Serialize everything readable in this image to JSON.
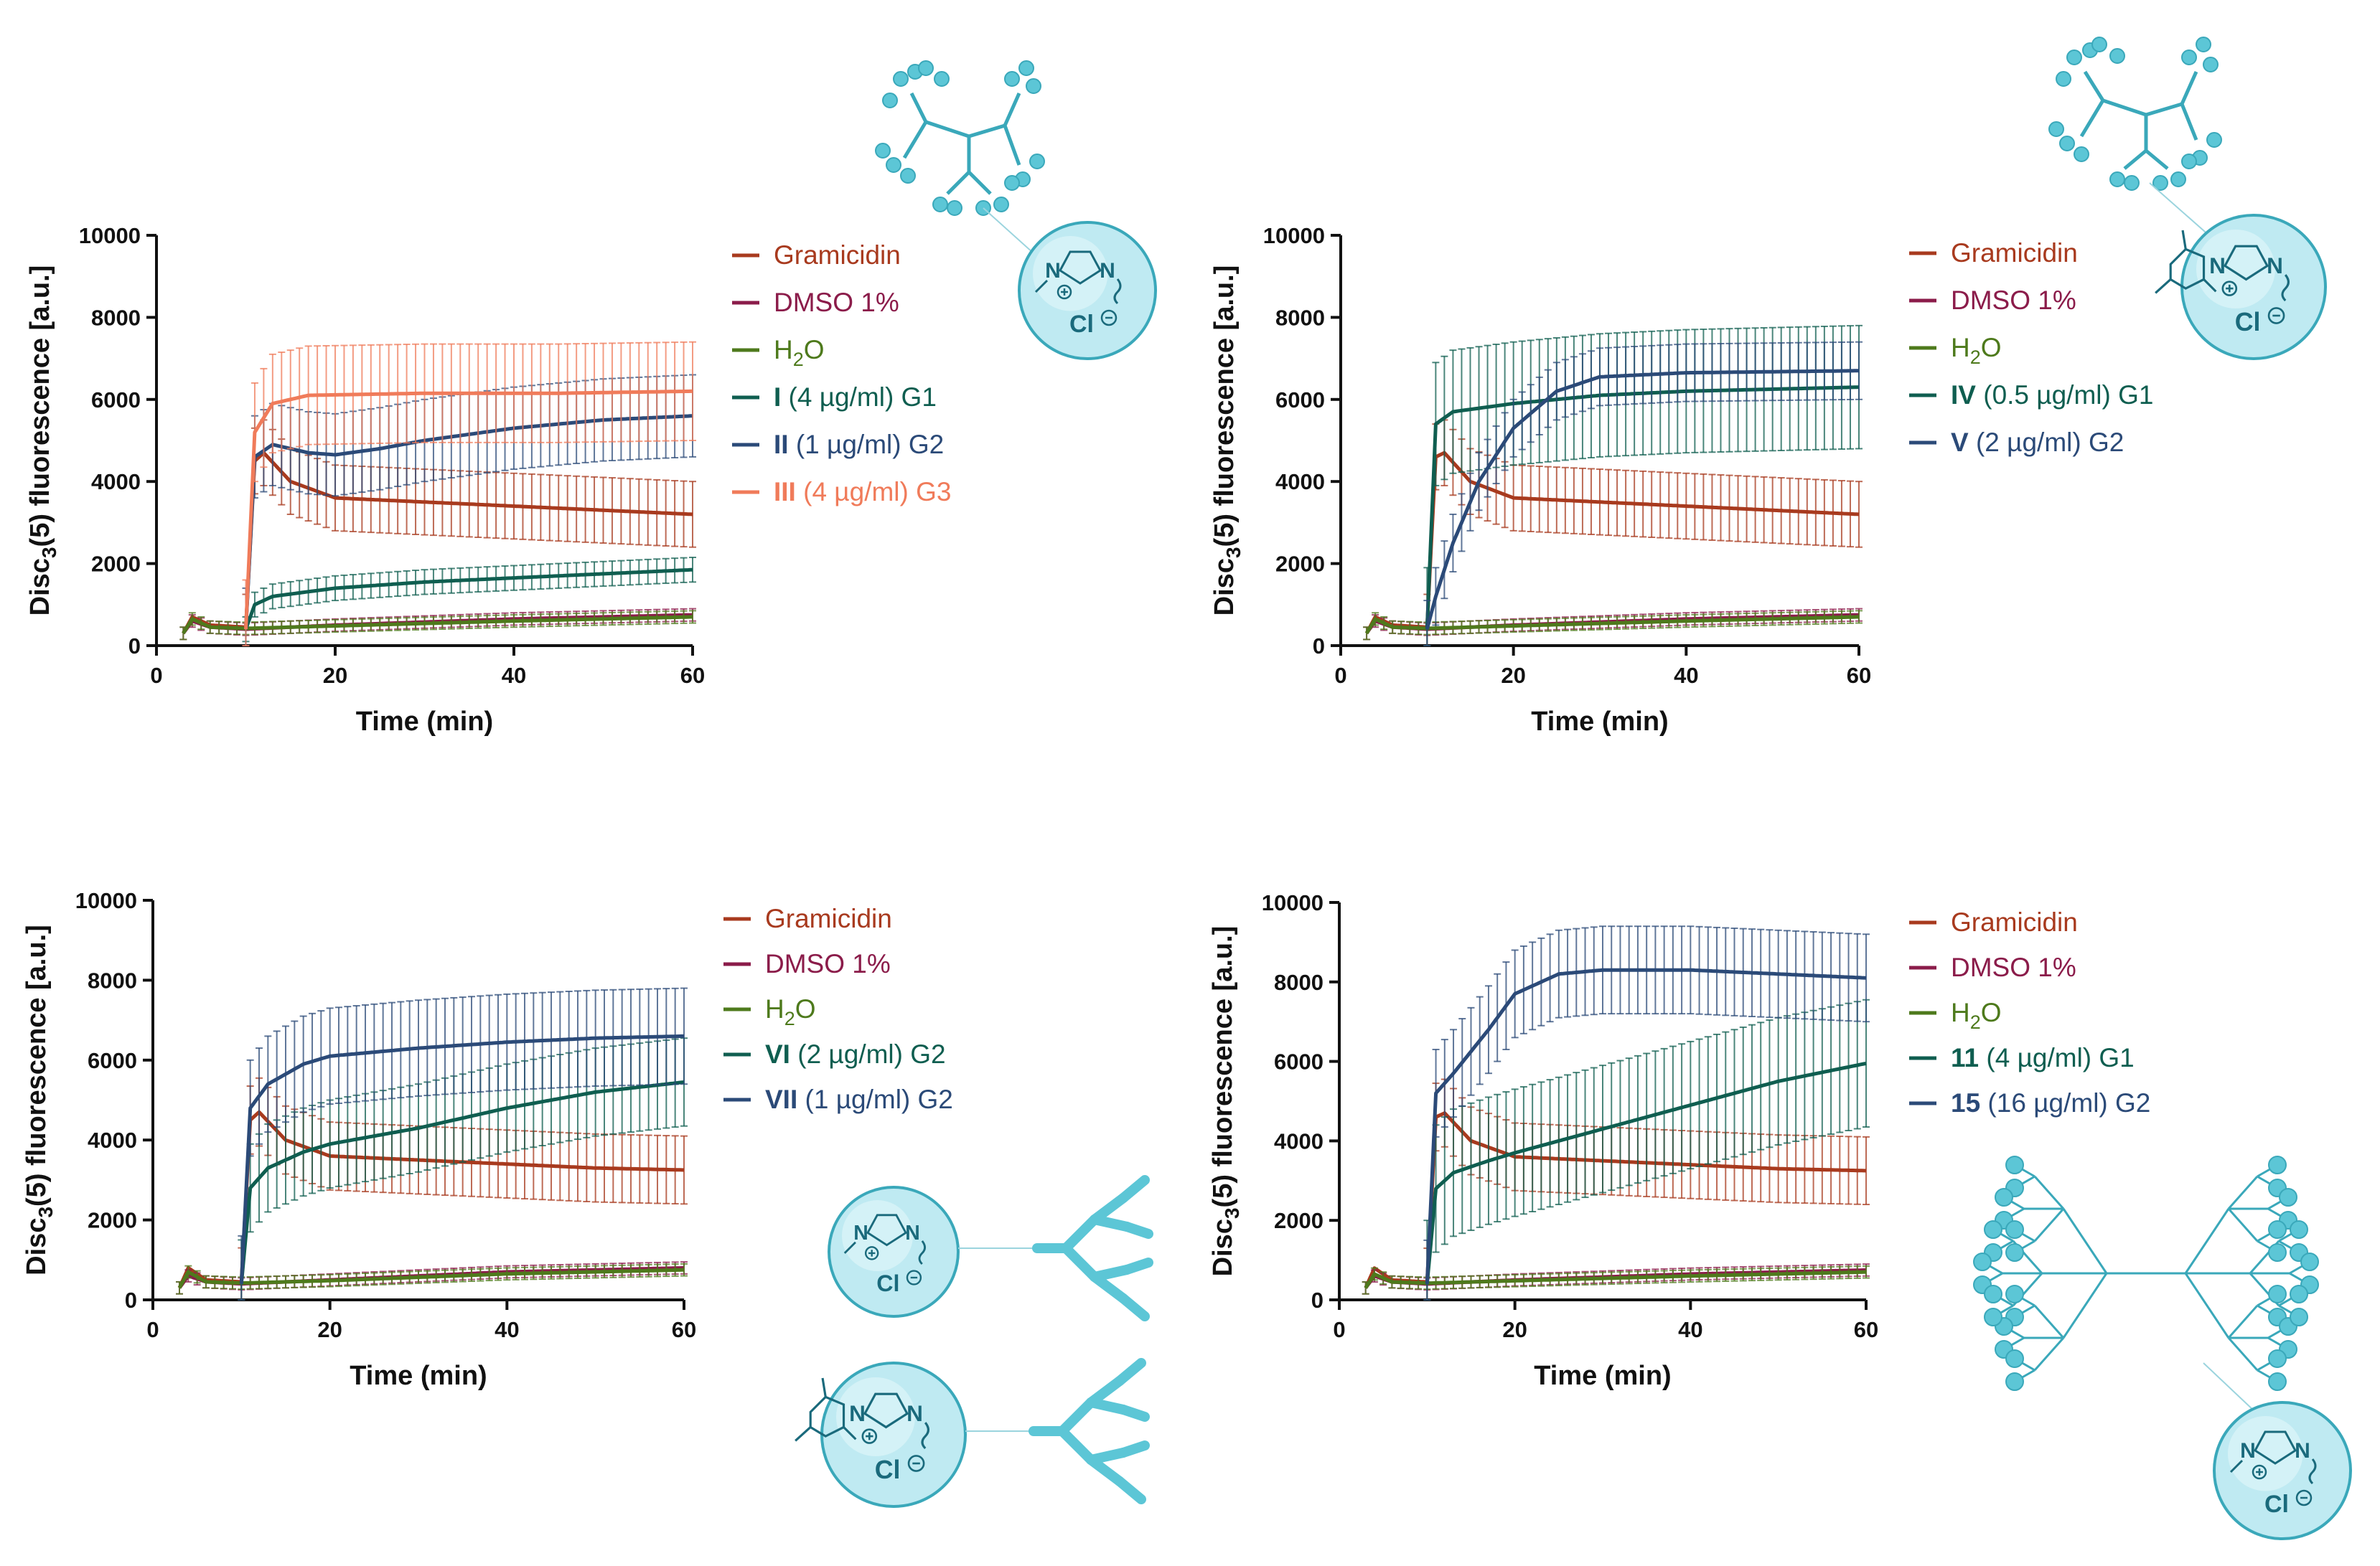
{
  "figure": {
    "colors": {
      "gramicidin": "#a83a1e",
      "dmso": "#8b1c4a",
      "water": "#4e7a1c",
      "teal": "#0f5e50",
      "blue": "#2b4a78",
      "orange": "#f07b5a",
      "mol": "#5cc6d6",
      "molStroke": "#3aa8ba"
    }
  },
  "chart_data": [
    {
      "type": "line",
      "panel": "top-left",
      "xlabel": "Time (min)",
      "ylabel_main": "Disc",
      "ylabel_sub": "3",
      "ylabel_rest": "(5) fluorescence [a.u.]",
      "xlim": [
        0,
        60
      ],
      "ylim": [
        0,
        10000
      ],
      "xticks": [
        "0",
        "20",
        "40",
        "60"
      ],
      "yticks": [
        "0",
        "2000",
        "4000",
        "6000",
        "8000",
        "10000"
      ],
      "legend_position": "right",
      "series": [
        {
          "key": "gram",
          "colorKey": "gramicidin",
          "bold": "",
          "label": "Gramicidin",
          "label_sub": "",
          "label_rest": "",
          "err": 800,
          "points": [
            [
              3,
              300
            ],
            [
              4,
              700
            ],
            [
              6,
              500
            ],
            [
              10,
              450
            ],
            [
              11,
              4500
            ],
            [
              12,
              4700
            ],
            [
              15,
              4000
            ],
            [
              20,
              3600
            ],
            [
              30,
              3500
            ],
            [
              40,
              3400
            ],
            [
              50,
              3300
            ],
            [
              60,
              3200
            ]
          ]
        },
        {
          "key": "dmso",
          "colorKey": "dmso",
          "bold": "",
          "label": "DMSO 1%",
          "label_sub": "",
          "label_rest": "",
          "err": 150,
          "points": [
            [
              3,
              300
            ],
            [
              4,
              600
            ],
            [
              6,
              450
            ],
            [
              10,
              400
            ],
            [
              20,
              500
            ],
            [
              40,
              650
            ],
            [
              60,
              750
            ]
          ]
        },
        {
          "key": "h2o",
          "colorKey": "water",
          "bold": "",
          "label": "H",
          "label_sub": "2",
          "label_rest": "O",
          "err": 150,
          "points": [
            [
              3,
              300
            ],
            [
              4,
              650
            ],
            [
              6,
              450
            ],
            [
              10,
              420
            ],
            [
              20,
              480
            ],
            [
              40,
              600
            ],
            [
              60,
              700
            ]
          ]
        },
        {
          "key": "s1",
          "colorKey": "teal",
          "bold": "I",
          "label": " (4 µg/ml) G1",
          "label_sub": "",
          "label_rest": "",
          "err": 300,
          "points": [
            [
              10,
              400
            ],
            [
              11,
              1000
            ],
            [
              13,
              1200
            ],
            [
              20,
              1400
            ],
            [
              30,
              1550
            ],
            [
              40,
              1650
            ],
            [
              50,
              1750
            ],
            [
              60,
              1850
            ]
          ]
        },
        {
          "key": "s2",
          "colorKey": "blue",
          "bold": "II",
          "label": " (1 µg/ml) G2",
          "label_sub": "",
          "label_rest": "",
          "err": 1000,
          "points": [
            [
              10,
              400
            ],
            [
              11,
              4600
            ],
            [
              13,
              4900
            ],
            [
              17,
              4700
            ],
            [
              20,
              4650
            ],
            [
              25,
              4800
            ],
            [
              30,
              5000
            ],
            [
              40,
              5300
            ],
            [
              50,
              5500
            ],
            [
              60,
              5600
            ]
          ]
        },
        {
          "key": "s3",
          "colorKey": "orange",
          "bold": "III",
          "label": " (4 µg/ml) G3",
          "label_sub": "",
          "label_rest": "",
          "err": 1200,
          "points": [
            [
              10,
              400
            ],
            [
              11,
              5200
            ],
            [
              13,
              5900
            ],
            [
              17,
              6100
            ],
            [
              30,
              6150
            ],
            [
              45,
              6150
            ],
            [
              60,
              6200
            ]
          ]
        }
      ]
    },
    {
      "type": "line",
      "panel": "top-right",
      "xlabel": "Time (min)",
      "ylabel_main": "Disc",
      "ylabel_sub": "3",
      "ylabel_rest": "(5) fluorescence [a.u.]",
      "xlim": [
        0,
        60
      ],
      "ylim": [
        0,
        10000
      ],
      "xticks": [
        "0",
        "20",
        "40",
        "60"
      ],
      "yticks": [
        "0",
        "2000",
        "4000",
        "6000",
        "8000",
        "10000"
      ],
      "legend_position": "right",
      "series": [
        {
          "key": "gram",
          "colorKey": "gramicidin",
          "bold": "",
          "label": "Gramicidin",
          "label_sub": "",
          "label_rest": "",
          "err": 800,
          "points": [
            [
              3,
              300
            ],
            [
              4,
              700
            ],
            [
              6,
              500
            ],
            [
              10,
              450
            ],
            [
              11,
              4600
            ],
            [
              12,
              4700
            ],
            [
              15,
              4000
            ],
            [
              20,
              3600
            ],
            [
              30,
              3500
            ],
            [
              40,
              3400
            ],
            [
              50,
              3300
            ],
            [
              60,
              3200
            ]
          ]
        },
        {
          "key": "dmso",
          "colorKey": "dmso",
          "bold": "",
          "label": "DMSO 1%",
          "label_sub": "",
          "label_rest": "",
          "err": 150,
          "points": [
            [
              3,
              300
            ],
            [
              4,
              600
            ],
            [
              6,
              450
            ],
            [
              10,
              400
            ],
            [
              20,
              500
            ],
            [
              40,
              650
            ],
            [
              60,
              750
            ]
          ]
        },
        {
          "key": "h2o",
          "colorKey": "water",
          "bold": "",
          "label": "H",
          "label_sub": "2",
          "label_rest": "O",
          "err": 150,
          "points": [
            [
              3,
              300
            ],
            [
              4,
              650
            ],
            [
              6,
              450
            ],
            [
              10,
              420
            ],
            [
              20,
              480
            ],
            [
              40,
              600
            ],
            [
              60,
              700
            ]
          ]
        },
        {
          "key": "s1",
          "colorKey": "teal",
          "bold": "IV",
          "label": " (0.5 µg/ml) G1",
          "label_sub": "",
          "label_rest": "",
          "err": 1500,
          "points": [
            [
              10,
              400
            ],
            [
              11,
              5400
            ],
            [
              13,
              5700
            ],
            [
              20,
              5900
            ],
            [
              30,
              6100
            ],
            [
              40,
              6200
            ],
            [
              60,
              6300
            ]
          ]
        },
        {
          "key": "s2",
          "colorKey": "blue",
          "bold": "V",
          "label": " (2 µg/ml) G2",
          "label_sub": "",
          "label_rest": "",
          "err": 700,
          "points": [
            [
              10,
              400
            ],
            [
              11,
              1200
            ],
            [
              13,
              2500
            ],
            [
              16,
              4000
            ],
            [
              20,
              5300
            ],
            [
              25,
              6200
            ],
            [
              30,
              6550
            ],
            [
              40,
              6650
            ],
            [
              60,
              6700
            ]
          ]
        }
      ]
    },
    {
      "type": "line",
      "panel": "bottom-left",
      "xlabel": "Time (min)",
      "ylabel_main": "Disc",
      "ylabel_sub": "3",
      "ylabel_rest": "(5) fluorescence [a.u.]",
      "xlim": [
        0,
        60
      ],
      "ylim": [
        0,
        10000
      ],
      "xticks": [
        "0",
        "20",
        "40",
        "60"
      ],
      "yticks": [
        "0",
        "2000",
        "4000",
        "6000",
        "8000",
        "10000"
      ],
      "legend_position": "right",
      "series": [
        {
          "key": "gram",
          "colorKey": "gramicidin",
          "bold": "",
          "label": "Gramicidin",
          "label_sub": "",
          "label_rest": "",
          "err": 850,
          "points": [
            [
              3,
              300
            ],
            [
              4,
              800
            ],
            [
              6,
              500
            ],
            [
              10,
              450
            ],
            [
              11,
              4500
            ],
            [
              12,
              4700
            ],
            [
              15,
              4000
            ],
            [
              20,
              3600
            ],
            [
              30,
              3500
            ],
            [
              40,
              3400
            ],
            [
              50,
              3300
            ],
            [
              60,
              3250
            ]
          ]
        },
        {
          "key": "dmso",
          "colorKey": "dmso",
          "bold": "",
          "label": "DMSO 1%",
          "label_sub": "",
          "label_rest": "",
          "err": 150,
          "points": [
            [
              3,
              300
            ],
            [
              4,
              600
            ],
            [
              6,
              450
            ],
            [
              10,
              400
            ],
            [
              20,
              500
            ],
            [
              40,
              700
            ],
            [
              60,
              800
            ]
          ]
        },
        {
          "key": "h2o",
          "colorKey": "water",
          "bold": "",
          "label": "H",
          "label_sub": "2",
          "label_rest": "O",
          "err": 150,
          "points": [
            [
              3,
              300
            ],
            [
              4,
              700
            ],
            [
              6,
              450
            ],
            [
              10,
              420
            ],
            [
              20,
              480
            ],
            [
              40,
              650
            ],
            [
              60,
              750
            ]
          ]
        },
        {
          "key": "s1",
          "colorKey": "teal",
          "bold": "VI",
          "label": " (2 µg/ml) G2",
          "label_sub": "",
          "label_rest": "",
          "err": 1100,
          "points": [
            [
              10,
              400
            ],
            [
              11,
              2800
            ],
            [
              13,
              3300
            ],
            [
              17,
              3700
            ],
            [
              20,
              3900
            ],
            [
              30,
              4300
            ],
            [
              40,
              4800
            ],
            [
              50,
              5200
            ],
            [
              60,
              5450
            ]
          ]
        },
        {
          "key": "s2",
          "colorKey": "blue",
          "bold": "VII",
          "label": " (1 µg/ml) G2",
          "label_sub": "",
          "label_rest": "",
          "err": 1200,
          "points": [
            [
              10,
              400
            ],
            [
              11,
              4800
            ],
            [
              13,
              5400
            ],
            [
              17,
              5900
            ],
            [
              20,
              6100
            ],
            [
              30,
              6300
            ],
            [
              40,
              6450
            ],
            [
              50,
              6550
            ],
            [
              60,
              6600
            ]
          ]
        }
      ]
    },
    {
      "type": "line",
      "panel": "bottom-right",
      "xlabel": "Time (min)",
      "ylabel_main": "Disc",
      "ylabel_sub": "3",
      "ylabel_rest": "(5) fluorescence [a.u.]",
      "xlim": [
        0,
        60
      ],
      "ylim": [
        0,
        10000
      ],
      "xticks": [
        "0",
        "20",
        "40",
        "60"
      ],
      "yticks": [
        "0",
        "2000",
        "4000",
        "6000",
        "8000",
        "10000"
      ],
      "legend_position": "right",
      "series": [
        {
          "key": "gram",
          "colorKey": "gramicidin",
          "bold": "",
          "label": "Gramicidin",
          "label_sub": "",
          "label_rest": "",
          "err": 850,
          "points": [
            [
              3,
              300
            ],
            [
              4,
              800
            ],
            [
              6,
              500
            ],
            [
              10,
              450
            ],
            [
              11,
              4600
            ],
            [
              12,
              4700
            ],
            [
              15,
              4000
            ],
            [
              20,
              3600
            ],
            [
              30,
              3500
            ],
            [
              40,
              3400
            ],
            [
              50,
              3300
            ],
            [
              60,
              3250
            ]
          ]
        },
        {
          "key": "dmso",
          "colorKey": "dmso",
          "bold": "",
          "label": "DMSO 1%",
          "label_sub": "",
          "label_rest": "",
          "err": 150,
          "points": [
            [
              3,
              300
            ],
            [
              4,
              600
            ],
            [
              6,
              450
            ],
            [
              10,
              400
            ],
            [
              20,
              500
            ],
            [
              40,
              650
            ],
            [
              60,
              750
            ]
          ]
        },
        {
          "key": "h2o",
          "colorKey": "water",
          "bold": "",
          "label": "H",
          "label_sub": "2",
          "label_rest": "O",
          "err": 150,
          "points": [
            [
              3,
              300
            ],
            [
              4,
              650
            ],
            [
              6,
              450
            ],
            [
              10,
              420
            ],
            [
              20,
              480
            ],
            [
              40,
              600
            ],
            [
              60,
              700
            ]
          ]
        },
        {
          "key": "s1",
          "colorKey": "teal",
          "bold": "11",
          "label": " (4 µg/ml) G1",
          "label_sub": "",
          "label_rest": "",
          "err": 1600,
          "points": [
            [
              10,
              400
            ],
            [
              11,
              2800
            ],
            [
              13,
              3200
            ],
            [
              17,
              3500
            ],
            [
              20,
              3700
            ],
            [
              30,
              4300
            ],
            [
              40,
              4900
            ],
            [
              50,
              5500
            ],
            [
              60,
              5950
            ]
          ]
        },
        {
          "key": "s2",
          "colorKey": "blue",
          "bold": "15",
          "label": " (16 µg/ml) G2",
          "label_sub": "",
          "label_rest": "",
          "err": 1100,
          "points": [
            [
              10,
              400
            ],
            [
              11,
              5200
            ],
            [
              13,
              5700
            ],
            [
              17,
              6800
            ],
            [
              20,
              7700
            ],
            [
              25,
              8200
            ],
            [
              30,
              8300
            ],
            [
              40,
              8300
            ],
            [
              50,
              8200
            ],
            [
              60,
              8100
            ]
          ]
        }
      ]
    }
  ],
  "molecules": {
    "cl_label": "Cl",
    "n_label": "N"
  }
}
